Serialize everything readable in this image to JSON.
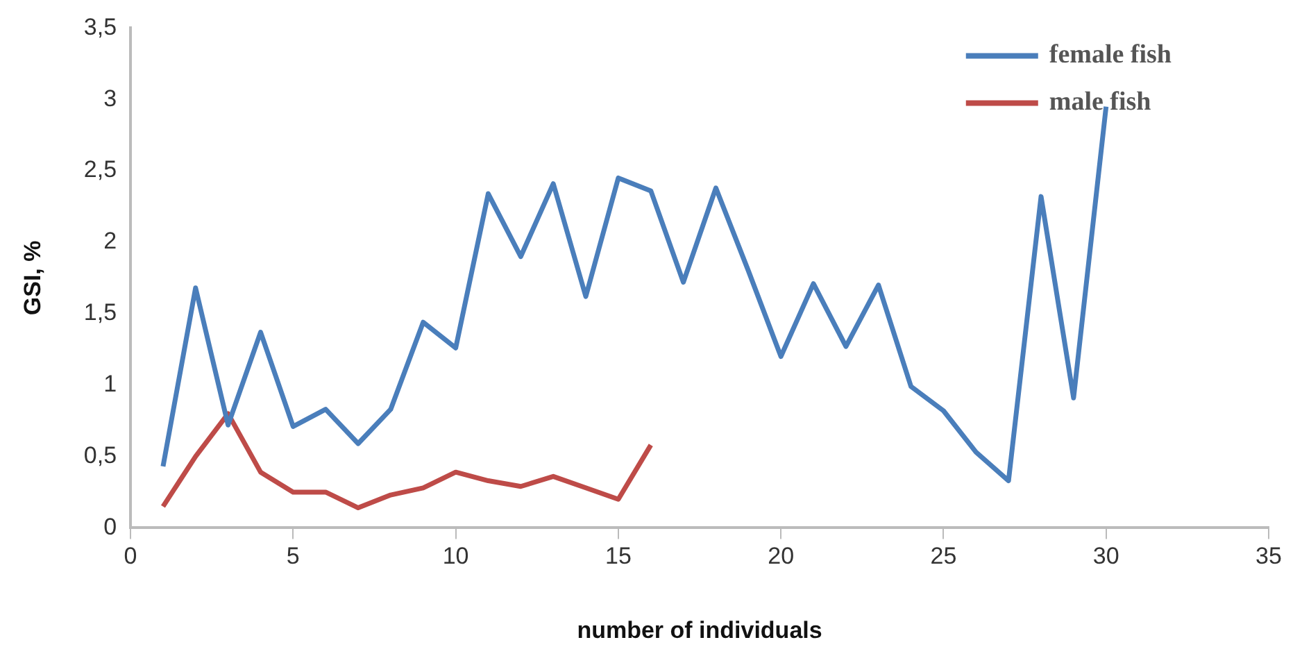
{
  "chart_data": {
    "type": "line",
    "xlabel": "number of individuals",
    "ylabel": "GSI, %",
    "xlim": [
      0,
      35
    ],
    "xticks": [
      0,
      5,
      10,
      15,
      20,
      25,
      30,
      35
    ],
    "ylim": [
      0,
      3.5
    ],
    "yticks": [
      0,
      {
        "value": 0.5,
        "label": "0,5"
      },
      1,
      {
        "value": 1.5,
        "label": "1,5"
      },
      2,
      {
        "value": 2.5,
        "label": "2,5"
      },
      3,
      {
        "value": 3.5,
        "label": "3,5"
      }
    ],
    "grid": false,
    "legend": "top right",
    "marker": "none",
    "line_style": "solid",
    "series": [
      {
        "name": "female fish",
        "color": "#4a7ebb",
        "x": [
          1,
          2,
          3,
          4,
          5,
          6,
          7,
          8,
          9,
          10,
          11,
          12,
          13,
          14,
          15,
          16,
          17,
          18,
          19,
          20,
          21,
          22,
          23,
          24,
          25,
          26,
          27,
          28,
          29,
          30
        ],
        "values": [
          0.43,
          1.68,
          0.72,
          1.37,
          0.71,
          0.83,
          0.59,
          0.83,
          1.44,
          1.26,
          2.34,
          1.9,
          2.41,
          1.62,
          2.45,
          2.36,
          1.72,
          2.38,
          1.8,
          1.2,
          1.71,
          1.27,
          1.7,
          0.99,
          0.82,
          0.53,
          0.33,
          2.32,
          0.91,
          2.95
        ]
      },
      {
        "name": "male fish",
        "color": "#be4b48",
        "x": [
          1,
          2,
          3,
          4,
          5,
          6,
          7,
          8,
          9,
          10,
          11,
          12,
          13,
          14,
          15,
          16
        ],
        "values": [
          0.15,
          0.5,
          0.8,
          0.39,
          0.25,
          0.25,
          0.14,
          0.23,
          0.28,
          0.39,
          0.33,
          0.29,
          0.36,
          0.28,
          0.2,
          0.58
        ]
      }
    ]
  }
}
